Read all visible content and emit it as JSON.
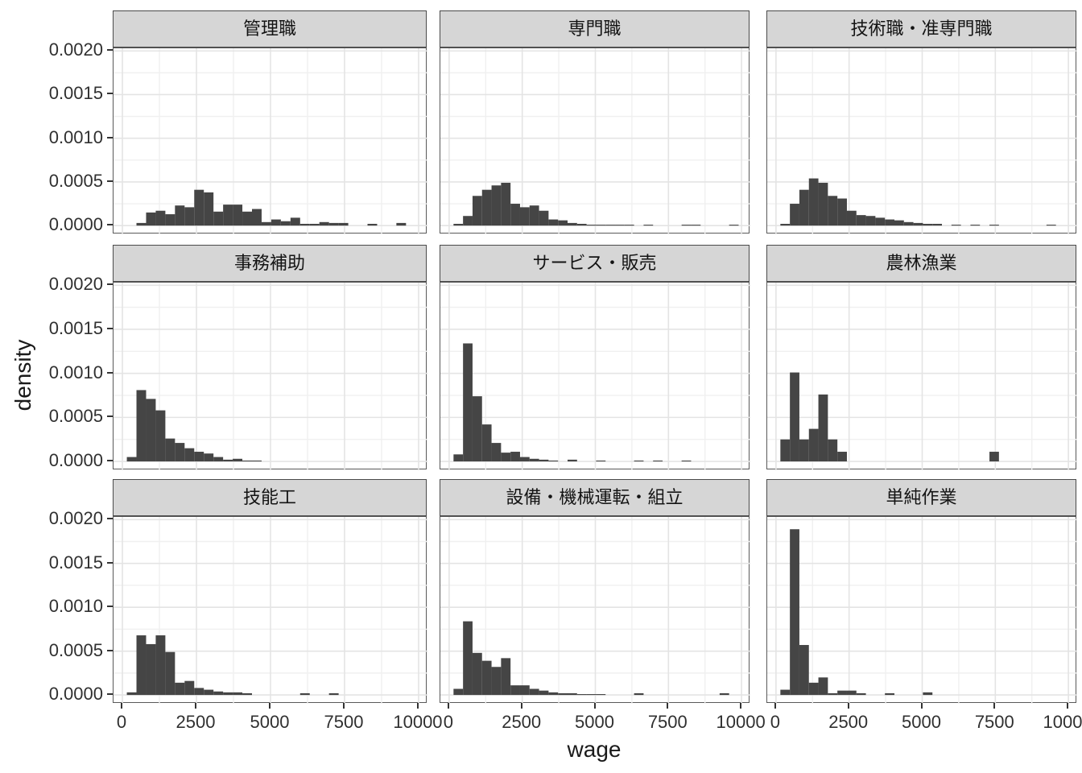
{
  "figure": {
    "x_axis_title": "wage",
    "y_axis_title": "density"
  },
  "chart_data": {
    "type": "histogram",
    "title": "",
    "xlabel": "wage",
    "ylabel": "density",
    "facet_layout": "3x3 grid, faceted by occupation",
    "legend": "none",
    "grid": "major and minor gridlines on white panels",
    "x_ticks": [
      0,
      2500,
      5000,
      7500,
      10000
    ],
    "x_minor_ticks": [
      1250,
      3750,
      6250,
      8750
    ],
    "y_ticks": [
      0.0,
      0.0005,
      0.001,
      0.0015,
      0.002
    ],
    "y_tick_labels": [
      "0.0000",
      "0.0005",
      "0.0010",
      "0.0015",
      "0.0020"
    ],
    "y_minor_ticks": [
      0.00025,
      0.00075,
      0.00125,
      0.00175
    ],
    "x_domain": [
      -300,
      10300
    ],
    "y_domain": [
      -0.0001,
      0.00203
    ],
    "bin_width": 325,
    "density_scale": 1e-05,
    "bars_note": "each bar = [bin start wage, density in 1e-5 units]",
    "facets": [
      {
        "label": "管理職",
        "bars": [
          [
            475,
            3
          ],
          [
            800,
            15
          ],
          [
            1125,
            17
          ],
          [
            1450,
            13
          ],
          [
            1775,
            23
          ],
          [
            2100,
            21
          ],
          [
            2425,
            41
          ],
          [
            2750,
            38
          ],
          [
            3075,
            16
          ],
          [
            3400,
            24
          ],
          [
            3725,
            24
          ],
          [
            4050,
            16
          ],
          [
            4375,
            19
          ],
          [
            4700,
            4
          ],
          [
            5025,
            7
          ],
          [
            5350,
            5
          ],
          [
            5675,
            9
          ],
          [
            6000,
            2
          ],
          [
            6325,
            2
          ],
          [
            6650,
            4
          ],
          [
            6975,
            3
          ],
          [
            7300,
            3
          ],
          [
            8275,
            2
          ],
          [
            9250,
            3
          ]
        ]
      },
      {
        "label": "専門職",
        "bars": [
          [
            150,
            2
          ],
          [
            475,
            11
          ],
          [
            800,
            34
          ],
          [
            1125,
            41
          ],
          [
            1450,
            46
          ],
          [
            1775,
            49
          ],
          [
            2100,
            25
          ],
          [
            2425,
            21
          ],
          [
            2750,
            23
          ],
          [
            3075,
            17
          ],
          [
            3400,
            7
          ],
          [
            3725,
            6
          ],
          [
            4050,
            3
          ],
          [
            4375,
            2
          ],
          [
            4700,
            1
          ],
          [
            5025,
            1
          ],
          [
            5350,
            1
          ],
          [
            5675,
            1
          ],
          [
            6000,
            1
          ],
          [
            6650,
            1
          ],
          [
            7950,
            1
          ],
          [
            8275,
            1
          ],
          [
            9575,
            1
          ]
        ]
      },
      {
        "label": "技術職・准専門職",
        "bars": [
          [
            150,
            2
          ],
          [
            475,
            25
          ],
          [
            800,
            41
          ],
          [
            1125,
            54
          ],
          [
            1450,
            49
          ],
          [
            1775,
            34
          ],
          [
            2100,
            31
          ],
          [
            2425,
            17
          ],
          [
            2750,
            12
          ],
          [
            3075,
            11
          ],
          [
            3400,
            9
          ],
          [
            3725,
            7
          ],
          [
            4050,
            6
          ],
          [
            4375,
            4
          ],
          [
            4700,
            3
          ],
          [
            5025,
            2
          ],
          [
            5350,
            2
          ],
          [
            6000,
            1
          ],
          [
            6650,
            1
          ],
          [
            7300,
            1
          ],
          [
            9250,
            1
          ]
        ]
      },
      {
        "label": "事務補助",
        "bars": [
          [
            150,
            5
          ],
          [
            475,
            81
          ],
          [
            800,
            71
          ],
          [
            1125,
            58
          ],
          [
            1450,
            26
          ],
          [
            1775,
            21
          ],
          [
            2100,
            15
          ],
          [
            2425,
            11
          ],
          [
            2750,
            9
          ],
          [
            3075,
            5
          ],
          [
            3400,
            2
          ],
          [
            3725,
            3
          ],
          [
            4050,
            1
          ],
          [
            4375,
            1
          ]
        ]
      },
      {
        "label": "サービス・販売",
        "bars": [
          [
            150,
            8
          ],
          [
            475,
            134
          ],
          [
            800,
            74
          ],
          [
            1125,
            42
          ],
          [
            1450,
            21
          ],
          [
            1775,
            10
          ],
          [
            2100,
            11
          ],
          [
            2425,
            5
          ],
          [
            2750,
            3
          ],
          [
            3075,
            2
          ],
          [
            3400,
            1
          ],
          [
            4050,
            2
          ],
          [
            5025,
            1
          ],
          [
            6325,
            1
          ],
          [
            6975,
            1
          ],
          [
            7950,
            1
          ]
        ]
      },
      {
        "label": "農林漁業",
        "bars": [
          [
            150,
            25
          ],
          [
            475,
            101
          ],
          [
            800,
            25
          ],
          [
            1125,
            37
          ],
          [
            1450,
            76
          ],
          [
            1775,
            25
          ],
          [
            2100,
            11
          ],
          [
            7300,
            11
          ]
        ]
      },
      {
        "label": "技能工",
        "bars": [
          [
            150,
            3
          ],
          [
            475,
            68
          ],
          [
            800,
            58
          ],
          [
            1125,
            68
          ],
          [
            1450,
            49
          ],
          [
            1775,
            14
          ],
          [
            2100,
            16
          ],
          [
            2425,
            8
          ],
          [
            2750,
            6
          ],
          [
            3075,
            4
          ],
          [
            3400,
            3
          ],
          [
            3725,
            3
          ],
          [
            4050,
            2
          ],
          [
            6000,
            2
          ],
          [
            6975,
            2
          ]
        ]
      },
      {
        "label": "設備・機械運転・組立",
        "bars": [
          [
            150,
            7
          ],
          [
            475,
            84
          ],
          [
            800,
            48
          ],
          [
            1125,
            39
          ],
          [
            1450,
            32
          ],
          [
            1775,
            42
          ],
          [
            2100,
            11
          ],
          [
            2425,
            11
          ],
          [
            2750,
            7
          ],
          [
            3075,
            5
          ],
          [
            3400,
            3
          ],
          [
            3725,
            2
          ],
          [
            4050,
            2
          ],
          [
            4375,
            1
          ],
          [
            4700,
            1
          ],
          [
            5025,
            1
          ],
          [
            6325,
            2
          ],
          [
            9250,
            2
          ]
        ]
      },
      {
        "label": "単純作業",
        "bars": [
          [
            150,
            6
          ],
          [
            475,
            189
          ],
          [
            800,
            57
          ],
          [
            1125,
            14
          ],
          [
            1450,
            20
          ],
          [
            1775,
            2
          ],
          [
            2100,
            5
          ],
          [
            2425,
            5
          ],
          [
            2750,
            2
          ],
          [
            3725,
            2
          ],
          [
            5025,
            3
          ]
        ]
      }
    ]
  },
  "colors": {
    "bar_fill": "#454545",
    "panel_background": "#ffffff",
    "panel_border": "#595959",
    "strip_background": "#d6d6d6",
    "strip_border": "#4a4a4a",
    "grid_major": "#e4e4e4",
    "grid_minor": "#f0f0f0",
    "tick_mark": "#333333",
    "tick_label": "#303030",
    "title_text": "#1a1a1a"
  }
}
